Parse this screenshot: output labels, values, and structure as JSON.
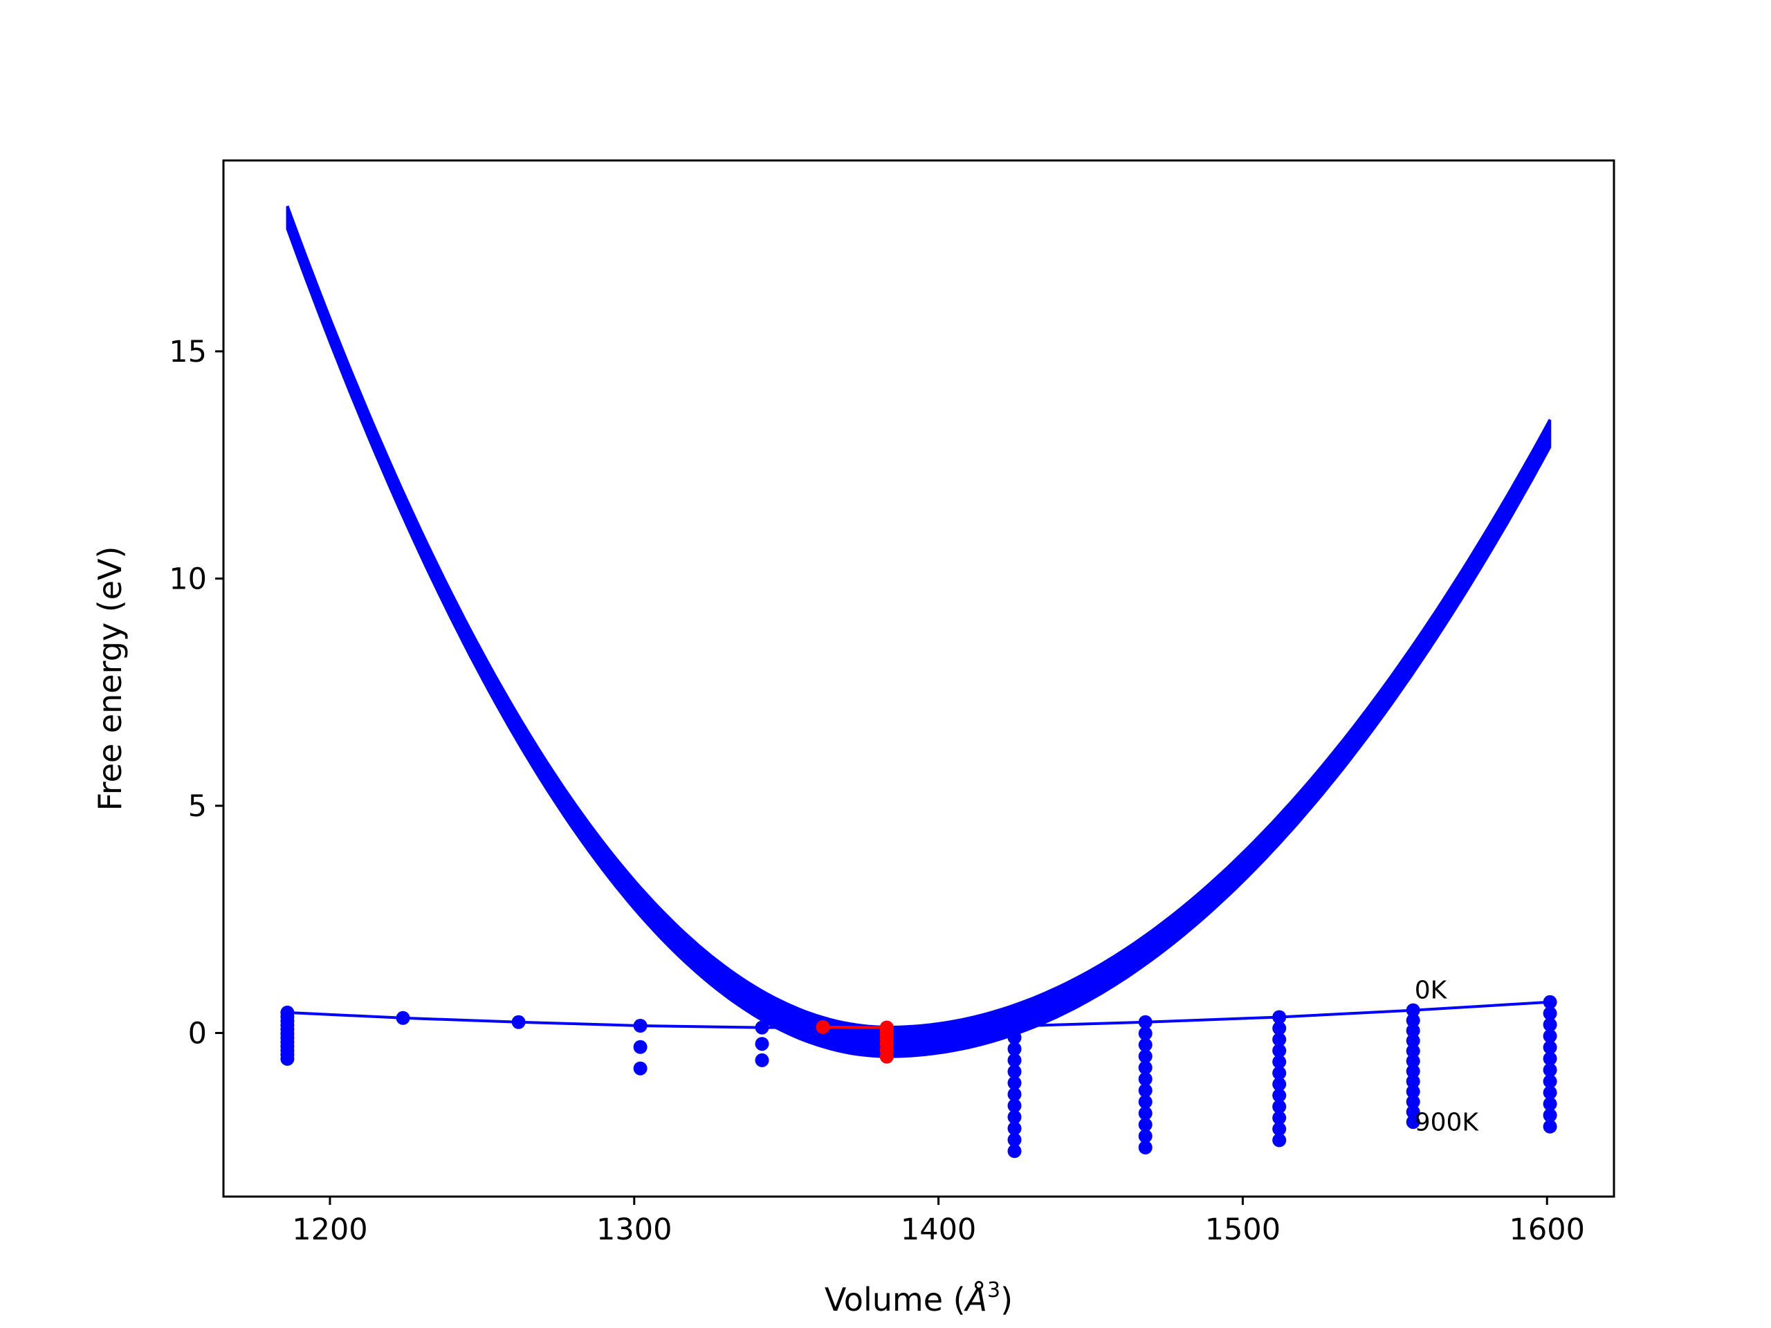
{
  "chart_data": {
    "type": "line",
    "xlabel": "Volume (Å³)",
    "xlabel_parts": {
      "prefix": "Volume (",
      "symbol": "Å",
      "sup": "3",
      "suffix": ")"
    },
    "ylabel": "Free energy (eV)",
    "xlim": [
      1165,
      1622
    ],
    "ylim": [
      -3.6,
      19.2
    ],
    "xticks": [
      1200,
      1300,
      1400,
      1500,
      1600
    ],
    "xtick_labels": [
      "1200",
      "1300",
      "1400",
      "1500",
      "1600"
    ],
    "yticks": [
      0,
      5,
      10,
      15
    ],
    "ytick_labels": [
      "0",
      "5",
      "10",
      "15"
    ],
    "grid": false,
    "legend": "none",
    "colors": {
      "fit_curves": "#0000ff",
      "static_curve": "#0000ff",
      "data_points": "#0000ff",
      "minimum_path": "#ff0000"
    },
    "temperatures": {
      "count": 91,
      "min_K": 0,
      "max_K": 900,
      "step_K": 10
    },
    "fit_curve_family": {
      "x_range": [
        1186,
        1601
      ],
      "min_volume_at_0K": 1383.5,
      "min_energy_at_0K": 0.13,
      "min_energy_at_900K": -0.52,
      "energy_at_1186": [
        17.7,
        18.2
      ],
      "energy_at_1601": [
        12.9,
        13.5
      ]
    },
    "static_curve": {
      "x": [
        1186,
        1224,
        1262,
        1302,
        1342,
        1383,
        1425,
        1468,
        1512,
        1556,
        1601
      ],
      "y": [
        0.45,
        0.33,
        0.24,
        0.16,
        0.12,
        0.12,
        0.15,
        0.24,
        0.35,
        0.5,
        0.68
      ]
    },
    "point_columns": [
      {
        "x": 1186,
        "y_top": 0.45,
        "y_bottom": -0.57
      },
      {
        "x": 1224,
        "y_top": 0.33,
        "y_bottom": 0.3
      },
      {
        "x": 1262,
        "y_top": 0.24,
        "y_bottom": 0.21
      },
      {
        "x": 1302,
        "y_top": 0.16,
        "y_bottom": -0.78
      },
      {
        "x": 1342,
        "y_top": 0.12,
        "y_bottom": -0.6
      },
      {
        "x": 1383,
        "y_top": 0.12,
        "y_bottom": -0.52
      },
      {
        "x": 1425,
        "y_top": 0.15,
        "y_bottom": -2.6
      },
      {
        "x": 1468,
        "y_top": 0.24,
        "y_bottom": -2.52
      },
      {
        "x": 1512,
        "y_top": 0.35,
        "y_bottom": -2.36
      },
      {
        "x": 1556,
        "y_top": 0.5,
        "y_bottom": -1.96
      },
      {
        "x": 1601,
        "y_top": 0.68,
        "y_bottom": -2.06
      }
    ],
    "minimum_path": {
      "x": [
        1362,
        1383,
        1383,
        1383,
        1383,
        1383,
        1383,
        1383
      ],
      "y": [
        0.13,
        0.12,
        0.05,
        -0.05,
        -0.15,
        -0.25,
        -0.38,
        -0.52
      ]
    },
    "annotations": [
      {
        "text": "0K",
        "x": 1556,
        "y": 0.76
      },
      {
        "text": "900K",
        "x": 1556,
        "y": -2.15
      }
    ]
  }
}
